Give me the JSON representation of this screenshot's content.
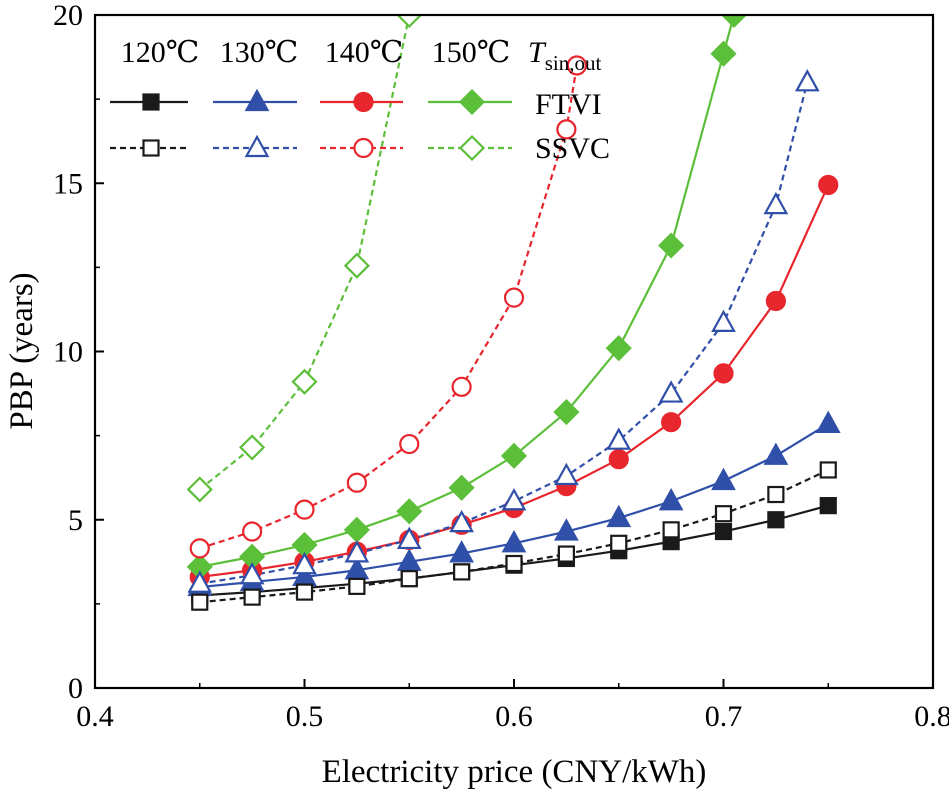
{
  "chart_data": {
    "type": "line",
    "title": "",
    "xlabel": "Electricity price (CNY/kWh)",
    "ylabel": "PBP (years)",
    "xlim": [
      0.4,
      0.8
    ],
    "ylim": [
      0,
      20
    ],
    "xticks": [
      0.4,
      0.5,
      0.6,
      0.7,
      0.8
    ],
    "xtick_labels": [
      "0.4",
      "0.5",
      "0.6",
      "0.7",
      "0.8"
    ],
    "yticks": [
      0,
      5,
      10,
      15,
      20
    ],
    "ytick_labels": [
      "0",
      "5",
      "10",
      "15",
      "20"
    ],
    "grid": false,
    "legend": {
      "position": "top-left",
      "column_headers": [
        "120℃",
        "130℃",
        "140℃",
        "150℃"
      ],
      "param_symbol": "T",
      "param_subscript": "sin,out",
      "row_labels": [
        "FTVI",
        "SSVC"
      ]
    },
    "series": [
      {
        "name": "FTVI 120℃",
        "color": "#1a1a1a",
        "marker": "square",
        "filled": true,
        "dashed": false,
        "x": [
          0.45,
          0.475,
          0.5,
          0.525,
          0.55,
          0.575,
          0.6,
          0.625,
          0.65,
          0.675,
          0.7,
          0.725,
          0.75
        ],
        "y": [
          2.75,
          2.85,
          2.97,
          3.1,
          3.25,
          3.45,
          3.65,
          3.85,
          4.08,
          4.35,
          4.65,
          5.0,
          5.42
        ]
      },
      {
        "name": "FTVI 130℃",
        "color": "#2f4fa8",
        "marker": "triangle",
        "filled": true,
        "dashed": false,
        "x": [
          0.45,
          0.475,
          0.5,
          0.525,
          0.55,
          0.575,
          0.6,
          0.625,
          0.65,
          0.675,
          0.7,
          0.725,
          0.75
        ],
        "y": [
          3.0,
          3.15,
          3.3,
          3.5,
          3.75,
          4.0,
          4.3,
          4.65,
          5.05,
          5.55,
          6.15,
          6.9,
          7.85
        ]
      },
      {
        "name": "FTVI 140℃",
        "color": "#e8262d",
        "marker": "circle",
        "filled": true,
        "dashed": false,
        "x": [
          0.45,
          0.475,
          0.5,
          0.525,
          0.55,
          0.575,
          0.6,
          0.625,
          0.65,
          0.675,
          0.7,
          0.725,
          0.75
        ],
        "y": [
          3.3,
          3.5,
          3.75,
          4.05,
          4.4,
          4.85,
          5.35,
          6.0,
          6.8,
          7.9,
          9.35,
          11.5,
          14.95
        ]
      },
      {
        "name": "FTVI 150℃",
        "color": "#5cbf3a",
        "marker": "diamond",
        "filled": true,
        "dashed": false,
        "x": [
          0.45,
          0.475,
          0.5,
          0.525,
          0.55,
          0.575,
          0.6,
          0.625,
          0.65,
          0.675,
          0.7,
          0.705
        ],
        "y": [
          3.6,
          3.9,
          4.25,
          4.7,
          5.25,
          5.95,
          6.9,
          8.2,
          10.1,
          13.15,
          18.85,
          20.0
        ]
      },
      {
        "name": "SSVC 120℃",
        "color": "#1a1a1a",
        "marker": "square",
        "filled": false,
        "dashed": true,
        "x": [
          0.45,
          0.475,
          0.5,
          0.525,
          0.55,
          0.575,
          0.6,
          0.625,
          0.65,
          0.675,
          0.7,
          0.725,
          0.75
        ],
        "y": [
          2.55,
          2.7,
          2.85,
          3.02,
          3.25,
          3.45,
          3.7,
          3.98,
          4.3,
          4.7,
          5.18,
          5.75,
          6.48
        ]
      },
      {
        "name": "SSVC 130℃",
        "color": "#2f4fa8",
        "marker": "triangle",
        "filled": false,
        "dashed": true,
        "x": [
          0.45,
          0.475,
          0.5,
          0.525,
          0.55,
          0.575,
          0.6,
          0.625,
          0.65,
          0.675,
          0.7,
          0.725,
          0.74
        ],
        "y": [
          3.1,
          3.35,
          3.65,
          4.0,
          4.4,
          4.9,
          5.55,
          6.3,
          7.35,
          8.75,
          10.85,
          14.35,
          18.0
        ]
      },
      {
        "name": "SSVC 140℃",
        "color": "#e8262d",
        "marker": "circle",
        "filled": false,
        "dashed": true,
        "x": [
          0.45,
          0.475,
          0.5,
          0.525,
          0.55,
          0.575,
          0.6,
          0.625,
          0.63
        ],
        "y": [
          4.15,
          4.65,
          5.3,
          6.1,
          7.25,
          8.95,
          11.6,
          16.6,
          18.5
        ]
      },
      {
        "name": "SSVC 150℃",
        "color": "#5cbf3a",
        "marker": "diamond",
        "filled": false,
        "dashed": true,
        "x": [
          0.45,
          0.475,
          0.5,
          0.525,
          0.55
        ],
        "y": [
          5.9,
          7.15,
          9.1,
          12.55,
          20.0
        ]
      }
    ]
  }
}
